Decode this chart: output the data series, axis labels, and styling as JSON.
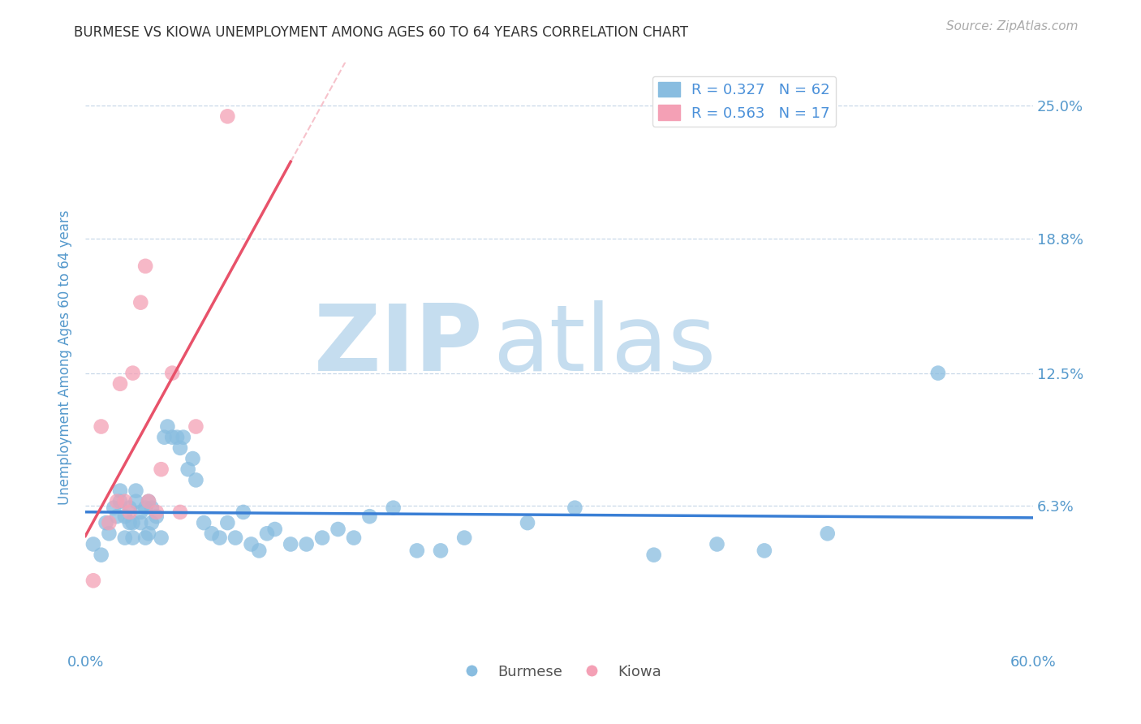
{
  "title": "BURMESE VS KIOWA UNEMPLOYMENT AMONG AGES 60 TO 64 YEARS CORRELATION CHART",
  "source_text": "Source: ZipAtlas.com",
  "ylabel": "Unemployment Among Ages 60 to 64 years",
  "xlim": [
    0.0,
    0.6
  ],
  "ylim": [
    -0.005,
    0.27
  ],
  "ytick_labels": [
    "6.3%",
    "12.5%",
    "18.8%",
    "25.0%"
  ],
  "ytick_positions": [
    0.063,
    0.125,
    0.188,
    0.25
  ],
  "background_color": "#ffffff",
  "grid_color": "#c8d8e8",
  "watermark_zip": "ZIP",
  "watermark_atlas": "atlas",
  "watermark_color": "#c5ddef",
  "burmese_color": "#89bde0",
  "kiowa_color": "#f4a0b5",
  "burmese_line_color": "#3a7fd5",
  "kiowa_line_color": "#e8526a",
  "legend_burmese_label": "R = 0.327   N = 62",
  "legend_kiowa_label": "R = 0.563   N = 17",
  "burmese_x": [
    0.005,
    0.01,
    0.013,
    0.015,
    0.018,
    0.02,
    0.022,
    0.022,
    0.025,
    0.025,
    0.028,
    0.028,
    0.03,
    0.03,
    0.032,
    0.032,
    0.035,
    0.035,
    0.038,
    0.038,
    0.04,
    0.04,
    0.042,
    0.042,
    0.045,
    0.048,
    0.05,
    0.052,
    0.055,
    0.058,
    0.06,
    0.062,
    0.065,
    0.068,
    0.07,
    0.075,
    0.08,
    0.085,
    0.09,
    0.095,
    0.1,
    0.105,
    0.11,
    0.115,
    0.12,
    0.13,
    0.14,
    0.15,
    0.16,
    0.17,
    0.18,
    0.195,
    0.21,
    0.225,
    0.24,
    0.28,
    0.31,
    0.36,
    0.4,
    0.43,
    0.47,
    0.54
  ],
  "burmese_y": [
    0.045,
    0.04,
    0.055,
    0.05,
    0.062,
    0.058,
    0.065,
    0.07,
    0.058,
    0.048,
    0.055,
    0.062,
    0.048,
    0.055,
    0.065,
    0.07,
    0.06,
    0.055,
    0.062,
    0.048,
    0.05,
    0.065,
    0.055,
    0.062,
    0.058,
    0.048,
    0.095,
    0.1,
    0.095,
    0.095,
    0.09,
    0.095,
    0.08,
    0.085,
    0.075,
    0.055,
    0.05,
    0.048,
    0.055,
    0.048,
    0.06,
    0.045,
    0.042,
    0.05,
    0.052,
    0.045,
    0.045,
    0.048,
    0.052,
    0.048,
    0.058,
    0.062,
    0.042,
    0.042,
    0.048,
    0.055,
    0.062,
    0.04,
    0.045,
    0.042,
    0.05,
    0.125
  ],
  "kiowa_x": [
    0.005,
    0.01,
    0.015,
    0.02,
    0.022,
    0.025,
    0.028,
    0.03,
    0.035,
    0.038,
    0.04,
    0.045,
    0.048,
    0.055,
    0.06,
    0.07,
    0.09
  ],
  "kiowa_y": [
    0.028,
    0.1,
    0.055,
    0.065,
    0.12,
    0.065,
    0.06,
    0.125,
    0.158,
    0.175,
    0.065,
    0.06,
    0.08,
    0.125,
    0.06,
    0.1,
    0.245
  ],
  "kiowa_line_x_start": 0.0,
  "kiowa_line_x_end": 0.13,
  "kiowa_line_dash_x_end": 0.3
}
